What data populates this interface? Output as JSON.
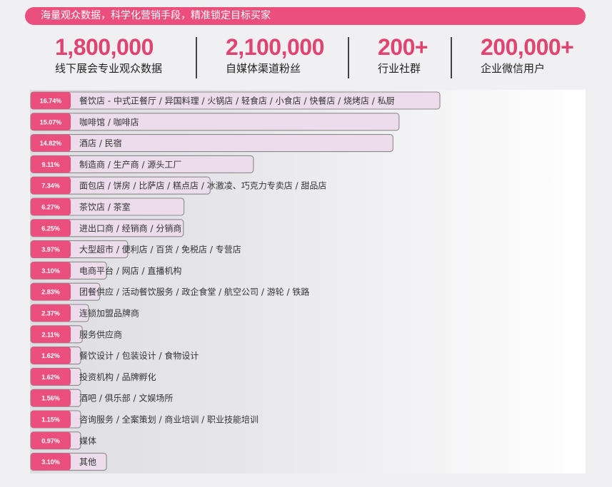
{
  "banner": {
    "text": "海量观众数据，科学化营销手段，精准锁定目标买家",
    "color": "#ea4f7e"
  },
  "stats": [
    {
      "value": "1,800,000",
      "label": "线下展会专业观众数据"
    },
    {
      "value": "2,100,000",
      "label": "自媒体渠道粉丝"
    },
    {
      "value": "200+",
      "label": "行业社群"
    },
    {
      "value": "200,000+",
      "label": "企业微信用户"
    }
  ],
  "colors": {
    "accent": "#e04471",
    "bar_fill": "#ecdcec",
    "bar_border": "#8a8a8a",
    "badge": "#ea4f7e"
  },
  "chart_data": {
    "type": "bar",
    "orientation": "horizontal",
    "categories": [
      "餐饮店 - 中式正餐厅 / 异国料理 / 火锅店 / 轻食店 / 小食店 / 快餐店 / 烧烤店 / 私厨",
      "咖啡馆 / 咖啡店",
      "酒店 / 民宿",
      "制造商 / 生产商 / 源头工厂",
      "面包店 / 饼房 / 比萨店 / 糕点店 / 冰激凌、巧克力专卖店 / 甜品店",
      "茶饮店 / 茶室",
      "进出口商 / 经销商 / 分销商",
      "大型超市 / 便利店 / 百货 / 免税店 / 专营店",
      "电商平台 / 网店 / 直播机构",
      "团餐供应 / 活动餐饮服务 / 政企食堂 / 航空公司 / 游轮 / 铁路",
      "连锁加盟品牌商",
      "服务供应商",
      "餐饮设计 / 包装设计 / 食物设计",
      "投资机构 / 品牌孵化",
      "酒吧 / 俱乐部 / 文娱场所",
      "咨询服务 / 全案策划 / 商业培训 / 职业技能培训",
      "媒体",
      "其他"
    ],
    "labels": [
      "16.74%",
      "15.07%",
      "14.82%",
      "9.11%",
      "7.34%",
      "6.27%",
      "6.25%",
      "3.97%",
      "3.10%",
      "2.83%",
      "2.37%",
      "2.11%",
      "1.62%",
      "1.62%",
      "1.56%",
      "1.15%",
      "0.97%",
      "3.10%"
    ],
    "values": [
      16.74,
      15.07,
      14.82,
      9.11,
      7.34,
      6.27,
      6.25,
      3.97,
      3.1,
      2.83,
      2.37,
      2.11,
      1.62,
      1.62,
      1.56,
      1.15,
      0.97,
      3.1
    ],
    "xlim": [
      0,
      16.74
    ]
  }
}
